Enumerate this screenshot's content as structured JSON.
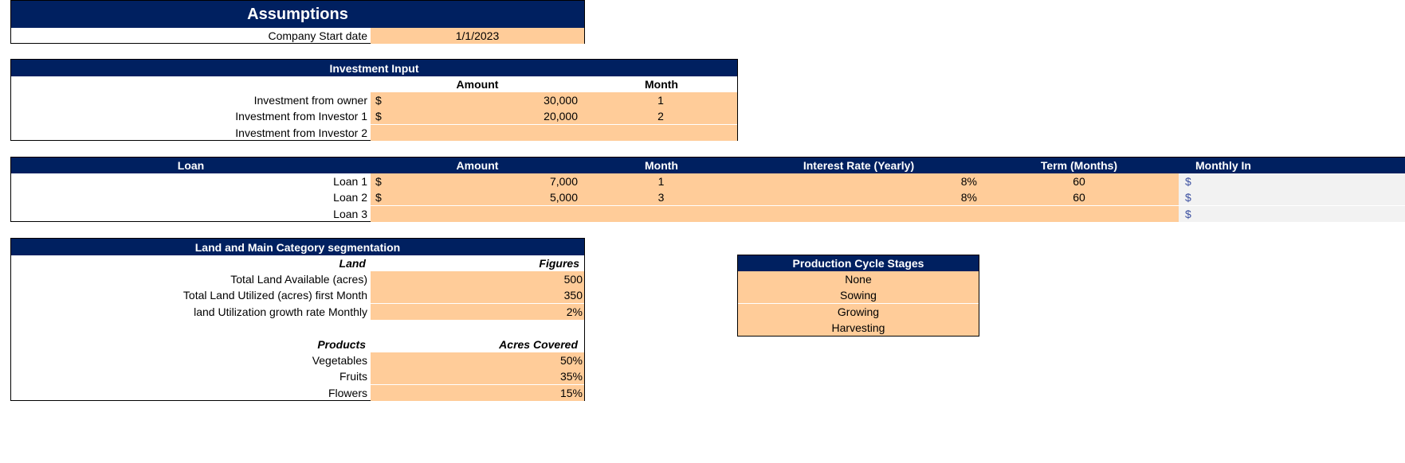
{
  "colors": {
    "header": "#002060",
    "input": "#FFCC99",
    "calc": "#F2F2F2"
  },
  "assumptions": {
    "title": "Assumptions",
    "start_label": "Company Start date",
    "start_value": "1/1/2023"
  },
  "investment": {
    "title": "Investment Input",
    "col_amount": "Amount",
    "col_month": "Month",
    "currency": "$",
    "rows": [
      {
        "label": "Investment from owner",
        "amount": "30,000",
        "month": "1"
      },
      {
        "label": "Investment from Investor 1",
        "amount": "20,000",
        "month": "2"
      },
      {
        "label": "Investment from Investor 2",
        "amount": "",
        "month": ""
      }
    ]
  },
  "loan": {
    "title": "Loan",
    "col_amount": "Amount",
    "col_month": "Month",
    "col_rate": "Interest Rate (Yearly)",
    "col_term": "Term (Months)",
    "col_monthly": "Monthly In",
    "currency": "$",
    "rows": [
      {
        "label": "Loan 1",
        "amount": "7,000",
        "month": "1",
        "rate": "8%",
        "term": "60"
      },
      {
        "label": "Loan 2",
        "amount": "5,000",
        "month": "3",
        "rate": "8%",
        "term": "60"
      },
      {
        "label": "Loan 3",
        "amount": "",
        "month": "",
        "rate": "",
        "term": ""
      }
    ]
  },
  "land": {
    "title": "Land and Main Category segmentation",
    "col_land": "Land",
    "col_figures": "Figures",
    "rows": [
      {
        "label": "Total Land Available (acres)",
        "value": "500"
      },
      {
        "label": "Total Land Utilized (acres) first Month",
        "value": "350"
      },
      {
        "label": "land Utilization growth rate Monthly",
        "value": "2%"
      }
    ],
    "col_products": "Products",
    "col_acres": "Acres Covered",
    "products": [
      {
        "label": "Vegetables",
        "value": "50%"
      },
      {
        "label": "Fruits",
        "value": "35%"
      },
      {
        "label": "Flowers",
        "value": "15%"
      }
    ]
  },
  "production": {
    "title": "Production Cycle Stages",
    "stages": [
      "None",
      "Sowing",
      "Growing",
      "Harvesting"
    ]
  }
}
